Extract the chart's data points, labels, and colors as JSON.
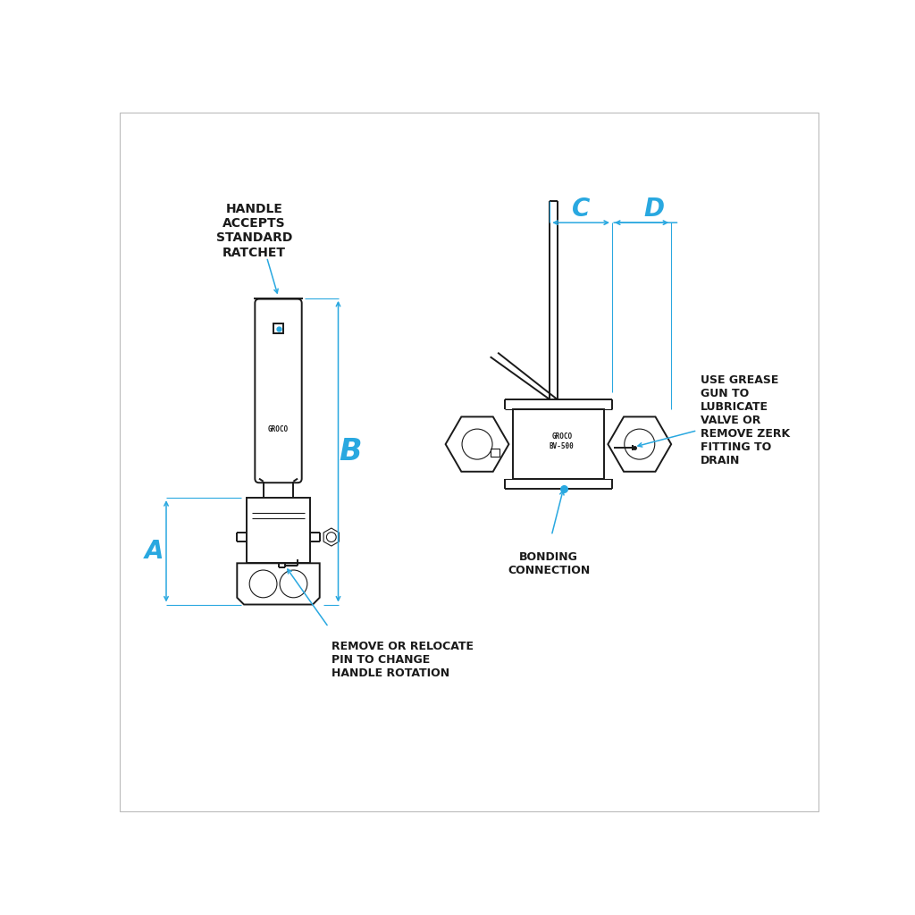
{
  "bg_color": "#ffffff",
  "line_color": "#1a1a1a",
  "dim_color": "#29a8e0",
  "text_color": "#1a1a1a",
  "annotations": {
    "handle_ratchet": "HANDLE\nACCEPTS\nSTANDARD\nRATCHET",
    "remove_pin": "REMOVE OR RELOCATE\nPIN TO CHANGE\nHANDLE ROTATION",
    "grease_gun": "USE GREASE\nGUN TO\nLUBRICATE\nVALVE OR\nREMOVE ZERK\nFITTING TO\nDRAIN",
    "bonding": "BONDING\nCONNECTION"
  },
  "groco_text": "GROCO",
  "groco_bv_text": "GROCO\nBV-500"
}
